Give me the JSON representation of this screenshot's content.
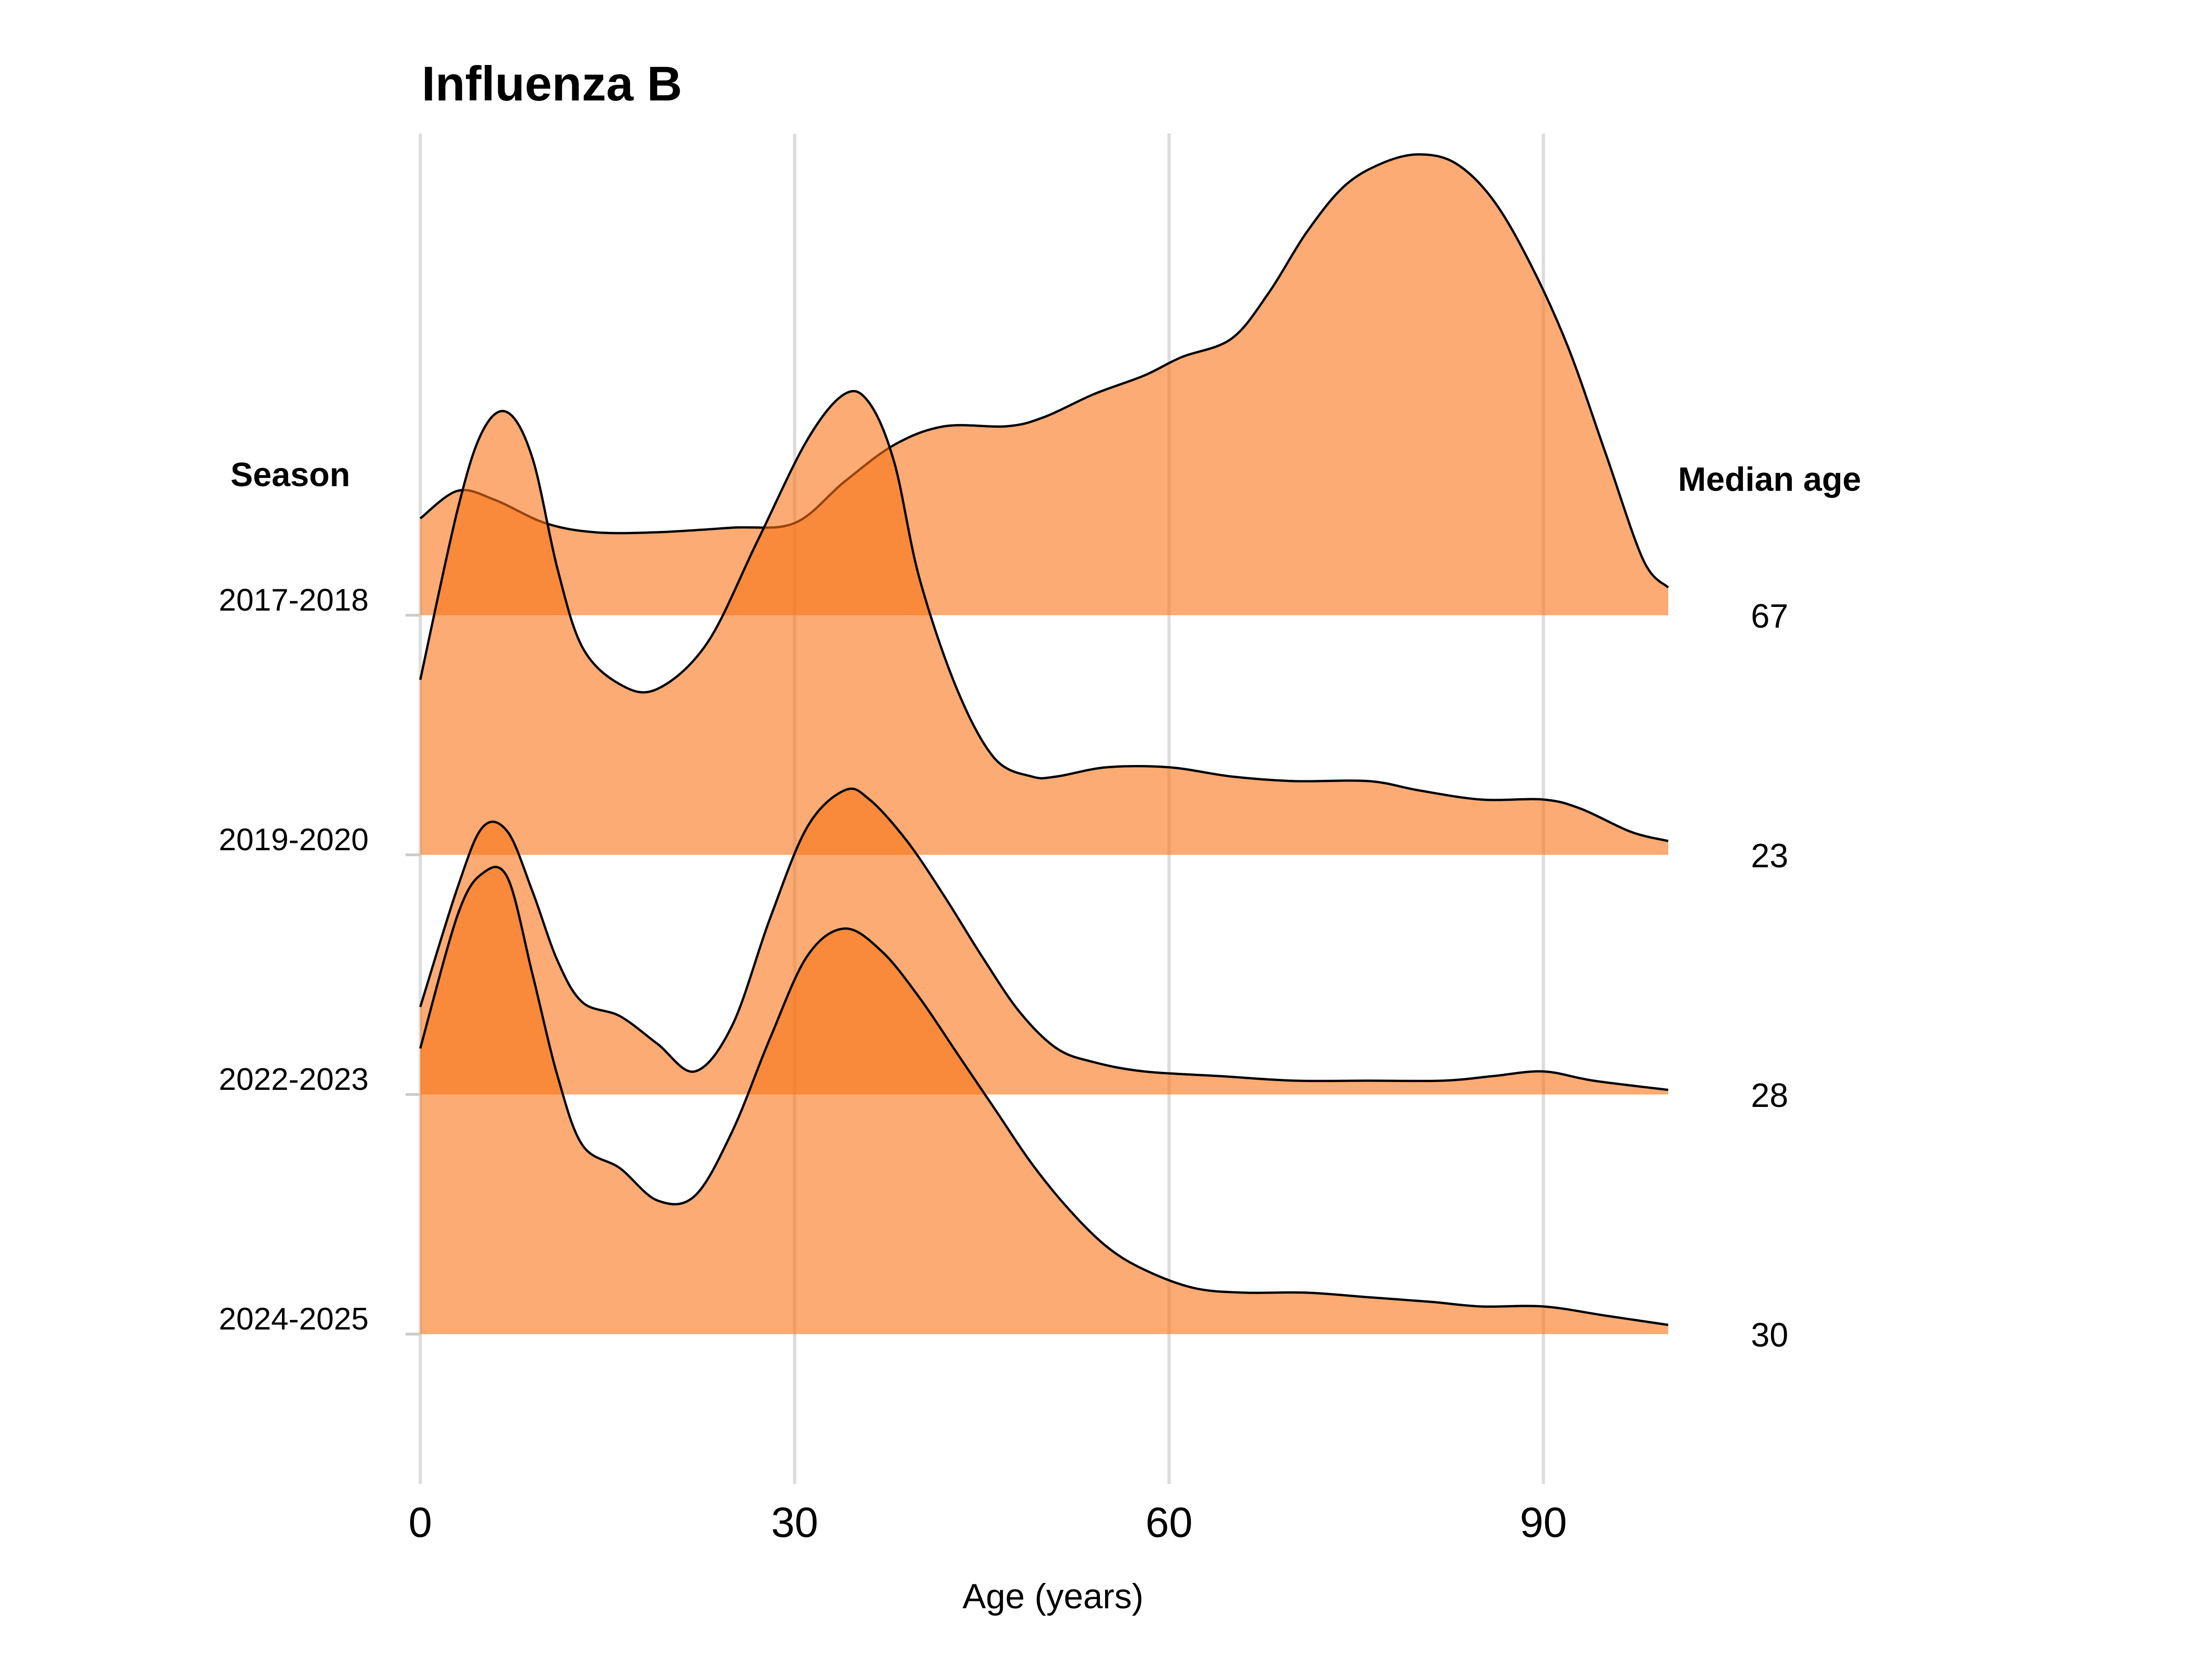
{
  "chart_data": {
    "type": "ridgeline",
    "title": "Influenza B",
    "xlabel": "Age (years)",
    "left_header": "Season",
    "right_header": "Median age",
    "xlim": [
      0,
      100
    ],
    "xticks": [
      0,
      30,
      60,
      90
    ],
    "grid": "vertical",
    "fill_color": "#f97316",
    "fill_opacity": 0.6,
    "line_color": "#000000",
    "series": [
      {
        "name": "2017-2018",
        "median_age": "67",
        "density": [
          [
            0,
            0.21
          ],
          [
            3,
            0.27
          ],
          [
            6,
            0.25
          ],
          [
            10,
            0.2
          ],
          [
            14,
            0.18
          ],
          [
            19,
            0.18
          ],
          [
            25,
            0.19
          ],
          [
            30,
            0.2
          ],
          [
            34,
            0.29
          ],
          [
            38,
            0.37
          ],
          [
            42,
            0.41
          ],
          [
            47,
            0.41
          ],
          [
            50,
            0.43
          ],
          [
            54,
            0.48
          ],
          [
            58,
            0.52
          ],
          [
            61,
            0.56
          ],
          [
            65,
            0.6
          ],
          [
            68,
            0.7
          ],
          [
            71,
            0.83
          ],
          [
            74,
            0.93
          ],
          [
            77,
            0.98
          ],
          [
            80,
            1.0
          ],
          [
            83,
            0.98
          ],
          [
            86,
            0.9
          ],
          [
            89,
            0.76
          ],
          [
            92,
            0.58
          ],
          [
            95,
            0.35
          ],
          [
            98,
            0.12
          ],
          [
            100,
            0.06
          ]
        ]
      },
      {
        "name": "2019-2020",
        "median_age": "23",
        "density": [
          [
            0,
            0.38
          ],
          [
            3,
            0.75
          ],
          [
            5,
            0.92
          ],
          [
            7,
            0.96
          ],
          [
            9,
            0.86
          ],
          [
            11,
            0.62
          ],
          [
            13,
            0.45
          ],
          [
            16,
            0.37
          ],
          [
            19,
            0.36
          ],
          [
            23,
            0.46
          ],
          [
            27,
            0.68
          ],
          [
            31,
            0.9
          ],
          [
            34,
            1.0
          ],
          [
            36,
            0.98
          ],
          [
            38,
            0.85
          ],
          [
            40,
            0.6
          ],
          [
            43,
            0.36
          ],
          [
            46,
            0.21
          ],
          [
            49,
            0.17
          ],
          [
            51,
            0.17
          ],
          [
            55,
            0.19
          ],
          [
            60,
            0.19
          ],
          [
            65,
            0.17
          ],
          [
            70,
            0.16
          ],
          [
            76,
            0.16
          ],
          [
            80,
            0.14
          ],
          [
            85,
            0.12
          ],
          [
            90,
            0.12
          ],
          [
            93,
            0.1
          ],
          [
            97,
            0.05
          ],
          [
            100,
            0.03
          ]
        ]
      },
      {
        "name": "2022-2023",
        "median_age": "28",
        "density": [
          [
            0,
            0.19
          ],
          [
            3,
            0.45
          ],
          [
            5,
            0.58
          ],
          [
            7,
            0.57
          ],
          [
            9,
            0.44
          ],
          [
            11,
            0.29
          ],
          [
            13,
            0.2
          ],
          [
            16,
            0.17
          ],
          [
            19,
            0.11
          ],
          [
            22,
            0.05
          ],
          [
            25,
            0.15
          ],
          [
            28,
            0.38
          ],
          [
            31,
            0.58
          ],
          [
            34,
            0.66
          ],
          [
            36,
            0.64
          ],
          [
            39,
            0.55
          ],
          [
            42,
            0.43
          ],
          [
            45,
            0.3
          ],
          [
            48,
            0.18
          ],
          [
            51,
            0.1
          ],
          [
            54,
            0.07
          ],
          [
            58,
            0.05
          ],
          [
            64,
            0.04
          ],
          [
            70,
            0.03
          ],
          [
            76,
            0.03
          ],
          [
            82,
            0.03
          ],
          [
            86,
            0.04
          ],
          [
            90,
            0.05
          ],
          [
            94,
            0.03
          ],
          [
            100,
            0.01
          ]
        ]
      },
      {
        "name": "2024-2025",
        "median_age": "30",
        "density": [
          [
            0,
            0.62
          ],
          [
            3,
            0.91
          ],
          [
            5,
            1.0
          ],
          [
            7,
            0.99
          ],
          [
            9,
            0.78
          ],
          [
            11,
            0.56
          ],
          [
            13,
            0.41
          ],
          [
            16,
            0.36
          ],
          [
            19,
            0.29
          ],
          [
            22,
            0.3
          ],
          [
            25,
            0.44
          ],
          [
            28,
            0.64
          ],
          [
            31,
            0.82
          ],
          [
            34,
            0.88
          ],
          [
            37,
            0.83
          ],
          [
            40,
            0.73
          ],
          [
            43,
            0.61
          ],
          [
            46,
            0.49
          ],
          [
            49,
            0.37
          ],
          [
            52,
            0.27
          ],
          [
            55,
            0.19
          ],
          [
            58,
            0.14
          ],
          [
            62,
            0.1
          ],
          [
            66,
            0.09
          ],
          [
            71,
            0.09
          ],
          [
            76,
            0.08
          ],
          [
            81,
            0.07
          ],
          [
            85,
            0.06
          ],
          [
            90,
            0.06
          ],
          [
            95,
            0.04
          ],
          [
            100,
            0.02
          ]
        ]
      }
    ]
  }
}
